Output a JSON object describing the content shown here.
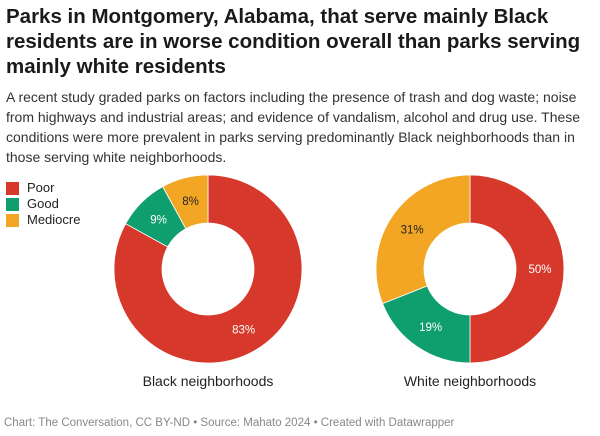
{
  "title": "Parks in Montgomery, Alabama, that serve mainly Black residents are in worse condition overall than parks serving mainly white residents",
  "description": "A recent study graded parks on factors including the presence of trash and dog waste; noise from highways and industrial areas; and evidence of vandalism, alcohol and drug use. These conditions were more prevalent in parks serving predominantly Black neighborhoods than in those serving white neighborhoods.",
  "footer": "Chart: The Conversation, CC BY-ND • Source: Mahato 2024 • Created with Datawrapper",
  "chart_data": {
    "type": "pie",
    "variant": "donut",
    "legend": [
      {
        "name": "Poor",
        "color": "#d6382c"
      },
      {
        "name": "Good",
        "color": "#0f9e6e"
      },
      {
        "name": "Mediocre",
        "color": "#f3a623"
      }
    ],
    "charts": [
      {
        "title": "Black neighborhoods",
        "slices": [
          {
            "name": "Poor",
            "value": 83,
            "label": "83%"
          },
          {
            "name": "Good",
            "value": 9,
            "label": "9%"
          },
          {
            "name": "Mediocre",
            "value": 8,
            "label": "8%"
          }
        ]
      },
      {
        "title": "White neighborhoods",
        "slices": [
          {
            "name": "Poor",
            "value": 50,
            "label": "50%"
          },
          {
            "name": "Good",
            "value": 19,
            "label": "19%"
          },
          {
            "name": "Mediocre",
            "value": 31,
            "label": "31%"
          }
        ]
      }
    ]
  }
}
